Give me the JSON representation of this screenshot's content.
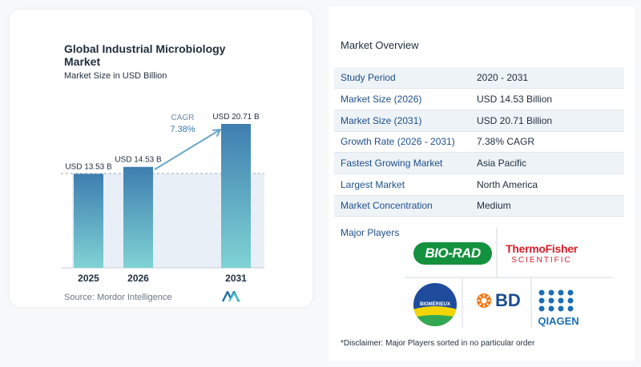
{
  "title": "Global Industrial Microbiology Market",
  "subtitle": "Market Size in USD Billion",
  "source": "Source:  Mordor Intelligence",
  "cagr_label": "CAGR",
  "cagr_value": "7.38%",
  "chart_data": {
    "type": "bar",
    "categories": [
      "2025",
      "2026",
      "2031"
    ],
    "values": [
      13.53,
      14.53,
      20.71
    ],
    "data_labels": [
      "USD 13.53 B",
      "USD 14.53 B",
      "USD 20.71 B"
    ],
    "title": "Global Industrial Microbiology Market",
    "ylabel": "Market Size in USD Billion",
    "ylim": [
      0,
      20.71
    ],
    "bar_color_top": "#3e7eb0",
    "bar_color_bottom": "#7fd3d4"
  },
  "overview": {
    "title": "Market Overview",
    "rows": [
      {
        "key": "Study Period",
        "value": "2020 - 2031"
      },
      {
        "key": "Market Size (2026)",
        "value": "USD 14.53 Billion"
      },
      {
        "key": "Market Size (2031)",
        "value": "USD 20.71 Billion"
      },
      {
        "key": "Growth Rate (2026 - 2031)",
        "value": "7.38% CAGR"
      },
      {
        "key": "Fastest Growing Market",
        "value": "Asia Pacific"
      },
      {
        "key": "Largest Market",
        "value": "North America"
      },
      {
        "key": "Market Concentration",
        "value": "Medium"
      }
    ]
  },
  "players": {
    "title": "Major Players",
    "logos": [
      "BIO-RAD",
      "ThermoFisher",
      "SCIENTIFIC",
      "BIOMÉRIEUX",
      "BD",
      "QIAGEN"
    ]
  },
  "disclaimer": "*Disclaimer: Major Players sorted in no particular order"
}
